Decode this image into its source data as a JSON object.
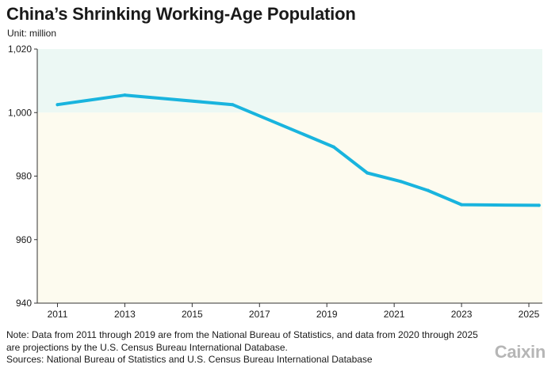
{
  "header": {
    "title": "China’s Shrinking Working-Age Population",
    "unit": "Unit: million"
  },
  "footer": {
    "note": "Note: Data from 2011 through 2019 are from the National Bureau of Statistics, and data from 2020 through 2025 are projections by the U.S. Census Bureau International Database.",
    "sources": "Sources: National Bureau of Statistics and U.S. Census Bureau International Database",
    "brand": "Caixin"
  },
  "colors": {
    "line": "#19b4de",
    "band_upper": "#ecf8f4",
    "band_lower": "#fdfbef",
    "axis": "#333333",
    "text": "#1a1a1a",
    "brand": "#b6b6b6"
  },
  "chart_data": {
    "type": "line",
    "title": "China’s Shrinking Working-Age Population",
    "ylabel": "Unit: million",
    "xlabel": "",
    "x_range": [
      2010.4,
      2025.4
    ],
    "ylim": [
      940,
      1020
    ],
    "x_ticks": [
      2011,
      2013,
      2015,
      2017,
      2019,
      2021,
      2023,
      2025
    ],
    "y_ticks": [
      940,
      960,
      980,
      1000,
      1020
    ],
    "y_tick_labels": [
      "940",
      "960",
      "980",
      "1,000",
      "1,020"
    ],
    "shaded_bands": [
      {
        "from": 1000,
        "to": 1020,
        "color": "#ecf8f4"
      },
      {
        "from": 940,
        "to": 1000,
        "color": "#fdfbef"
      }
    ],
    "series": [
      {
        "name": "Working-age population",
        "x": [
          2011,
          2013,
          2016.2,
          2019.2,
          2020.2,
          2021.2,
          2022,
          2023,
          2024,
          2025.3
        ],
        "values": [
          1002.5,
          1005.5,
          1002.5,
          989.2,
          981.0,
          978.3,
          975.5,
          971.0,
          970.9,
          970.8
        ]
      }
    ],
    "grid": false
  }
}
